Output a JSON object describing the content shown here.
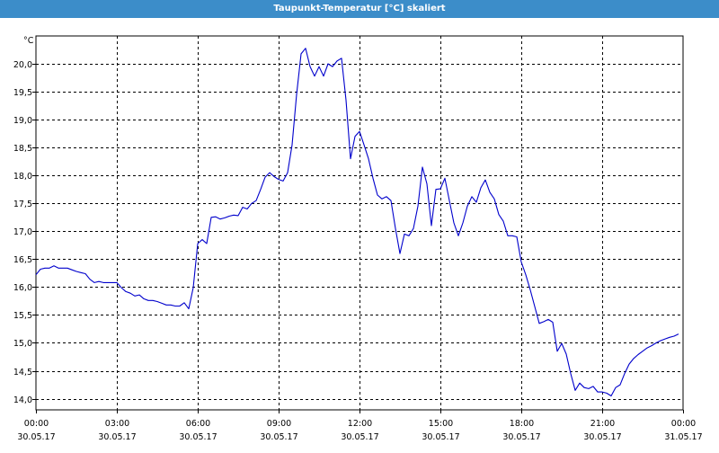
{
  "window": {
    "title": "Taupunkt-Temperatur [°C] skaliert"
  },
  "colors": {
    "titlebar": "#3c8dc9",
    "line": "#0000cc",
    "grid": "#000000",
    "background": "#ffffff"
  },
  "chart_data": {
    "type": "line",
    "title": "Taupunkt-Temperatur [°C] skaliert",
    "y_unit": "°C",
    "ylim": [
      13.8,
      20.5
    ],
    "y_ticks": [
      "20,0",
      "19,5",
      "19,0",
      "18,5",
      "18,0",
      "17,5",
      "17,0",
      "16,5",
      "16,0",
      "15,5",
      "15,0",
      "14,5",
      "14,0"
    ],
    "x_ticks": [
      {
        "time": "00:00",
        "date": "30.05.17"
      },
      {
        "time": "03:00",
        "date": "30.05.17"
      },
      {
        "time": "06:00",
        "date": "30.05.17"
      },
      {
        "time": "09:00",
        "date": "30.05.17"
      },
      {
        "time": "12:00",
        "date": "30.05.17"
      },
      {
        "time": "15:00",
        "date": "30.05.17"
      },
      {
        "time": "18:00",
        "date": "30.05.17"
      },
      {
        "time": "21:00",
        "date": "30.05.17"
      },
      {
        "time": "00:00",
        "date": "31.05.17"
      }
    ],
    "grid": true,
    "series": [
      {
        "points": [
          [
            "00:00",
            16.22
          ],
          [
            "00:10",
            16.32
          ],
          [
            "00:20",
            16.34
          ],
          [
            "00:30",
            16.34
          ],
          [
            "00:40",
            16.38
          ],
          [
            "00:50",
            16.34
          ],
          [
            "01:00",
            16.34
          ],
          [
            "01:10",
            16.34
          ],
          [
            "01:20",
            16.31
          ],
          [
            "01:30",
            16.28
          ],
          [
            "01:40",
            16.26
          ],
          [
            "01:50",
            16.24
          ],
          [
            "02:00",
            16.14
          ],
          [
            "02:10",
            16.08
          ],
          [
            "02:20",
            16.1
          ],
          [
            "02:30",
            16.08
          ],
          [
            "02:40",
            16.08
          ],
          [
            "02:50",
            16.08
          ],
          [
            "03:00",
            16.08
          ],
          [
            "03:10",
            15.99
          ],
          [
            "03:20",
            15.92
          ],
          [
            "03:30",
            15.89
          ],
          [
            "03:40",
            15.84
          ],
          [
            "03:50",
            15.86
          ],
          [
            "04:00",
            15.79
          ],
          [
            "04:10",
            15.76
          ],
          [
            "04:20",
            15.76
          ],
          [
            "04:30",
            15.74
          ],
          [
            "04:40",
            15.71
          ],
          [
            "04:50",
            15.68
          ],
          [
            "05:00",
            15.68
          ],
          [
            "05:10",
            15.66
          ],
          [
            "05:20",
            15.66
          ],
          [
            "05:30",
            15.72
          ],
          [
            "05:40",
            15.61
          ],
          [
            "05:50",
            15.99
          ],
          [
            "06:00",
            16.78
          ],
          [
            "06:10",
            16.85
          ],
          [
            "06:20",
            16.78
          ],
          [
            "06:30",
            17.25
          ],
          [
            "06:40",
            17.26
          ],
          [
            "06:50",
            17.22
          ],
          [
            "07:00",
            17.24
          ],
          [
            "07:10",
            17.27
          ],
          [
            "07:20",
            17.29
          ],
          [
            "07:30",
            17.28
          ],
          [
            "07:40",
            17.43
          ],
          [
            "07:50",
            17.4
          ],
          [
            "08:00",
            17.5
          ],
          [
            "08:10",
            17.55
          ],
          [
            "08:20",
            17.75
          ],
          [
            "08:30",
            17.97
          ],
          [
            "08:40",
            18.05
          ],
          [
            "08:50",
            17.98
          ],
          [
            "09:00",
            17.93
          ],
          [
            "09:10",
            17.9
          ],
          [
            "09:20",
            18.05
          ],
          [
            "09:30",
            18.55
          ],
          [
            "09:40",
            19.45
          ],
          [
            "09:50",
            20.18
          ],
          [
            "10:00",
            20.28
          ],
          [
            "10:10",
            19.95
          ],
          [
            "10:20",
            19.78
          ],
          [
            "10:30",
            19.95
          ],
          [
            "10:40",
            19.78
          ],
          [
            "10:50",
            20.0
          ],
          [
            "11:00",
            19.95
          ],
          [
            "11:10",
            20.05
          ],
          [
            "11:20",
            20.1
          ],
          [
            "11:30",
            19.35
          ],
          [
            "11:40",
            18.3
          ],
          [
            "11:50",
            18.7
          ],
          [
            "12:00",
            18.79
          ],
          [
            "12:10",
            18.55
          ],
          [
            "12:20",
            18.3
          ],
          [
            "12:30",
            17.95
          ],
          [
            "12:40",
            17.65
          ],
          [
            "12:50",
            17.58
          ],
          [
            "13:00",
            17.62
          ],
          [
            "13:10",
            17.55
          ],
          [
            "13:20",
            17.05
          ],
          [
            "13:30",
            16.6
          ],
          [
            "13:40",
            16.95
          ],
          [
            "13:50",
            16.92
          ],
          [
            "14:00",
            17.05
          ],
          [
            "14:10",
            17.45
          ],
          [
            "14:20",
            18.15
          ],
          [
            "14:30",
            17.85
          ],
          [
            "14:40",
            17.1
          ],
          [
            "14:50",
            17.75
          ],
          [
            "15:00",
            17.76
          ],
          [
            "15:10",
            17.95
          ],
          [
            "15:20",
            17.55
          ],
          [
            "15:30",
            17.15
          ],
          [
            "15:40",
            16.92
          ],
          [
            "15:50",
            17.15
          ],
          [
            "16:00",
            17.45
          ],
          [
            "16:10",
            17.62
          ],
          [
            "16:20",
            17.52
          ],
          [
            "16:30",
            17.78
          ],
          [
            "16:40",
            17.92
          ],
          [
            "16:50",
            17.7
          ],
          [
            "17:00",
            17.58
          ],
          [
            "17:10",
            17.3
          ],
          [
            "17:20",
            17.18
          ],
          [
            "17:30",
            16.92
          ],
          [
            "17:40",
            16.92
          ],
          [
            "17:50",
            16.9
          ],
          [
            "18:00",
            16.45
          ],
          [
            "18:10",
            16.22
          ],
          [
            "18:20",
            15.95
          ],
          [
            "18:30",
            15.65
          ],
          [
            "18:40",
            15.35
          ],
          [
            "18:50",
            15.38
          ],
          [
            "19:00",
            15.42
          ],
          [
            "19:10",
            15.37
          ],
          [
            "19:20",
            14.85
          ],
          [
            "19:30",
            14.99
          ],
          [
            "19:40",
            14.8
          ],
          [
            "19:50",
            14.45
          ],
          [
            "20:00",
            14.15
          ],
          [
            "20:10",
            14.28
          ],
          [
            "20:20",
            14.2
          ],
          [
            "20:30",
            14.18
          ],
          [
            "20:40",
            14.22
          ],
          [
            "20:50",
            14.12
          ],
          [
            "21:00",
            14.12
          ],
          [
            "21:10",
            14.1
          ],
          [
            "21:20",
            14.05
          ],
          [
            "21:30",
            14.2
          ],
          [
            "21:40",
            14.25
          ],
          [
            "21:50",
            14.45
          ],
          [
            "22:00",
            14.62
          ],
          [
            "22:10",
            14.72
          ],
          [
            "22:20",
            14.79
          ],
          [
            "22:30",
            14.85
          ],
          [
            "22:40",
            14.91
          ],
          [
            "22:50",
            14.95
          ],
          [
            "23:00",
            15.0
          ],
          [
            "23:10",
            15.04
          ],
          [
            "23:20",
            15.07
          ],
          [
            "23:30",
            15.1
          ],
          [
            "23:40",
            15.12
          ],
          [
            "23:50",
            15.16
          ]
        ]
      }
    ]
  }
}
